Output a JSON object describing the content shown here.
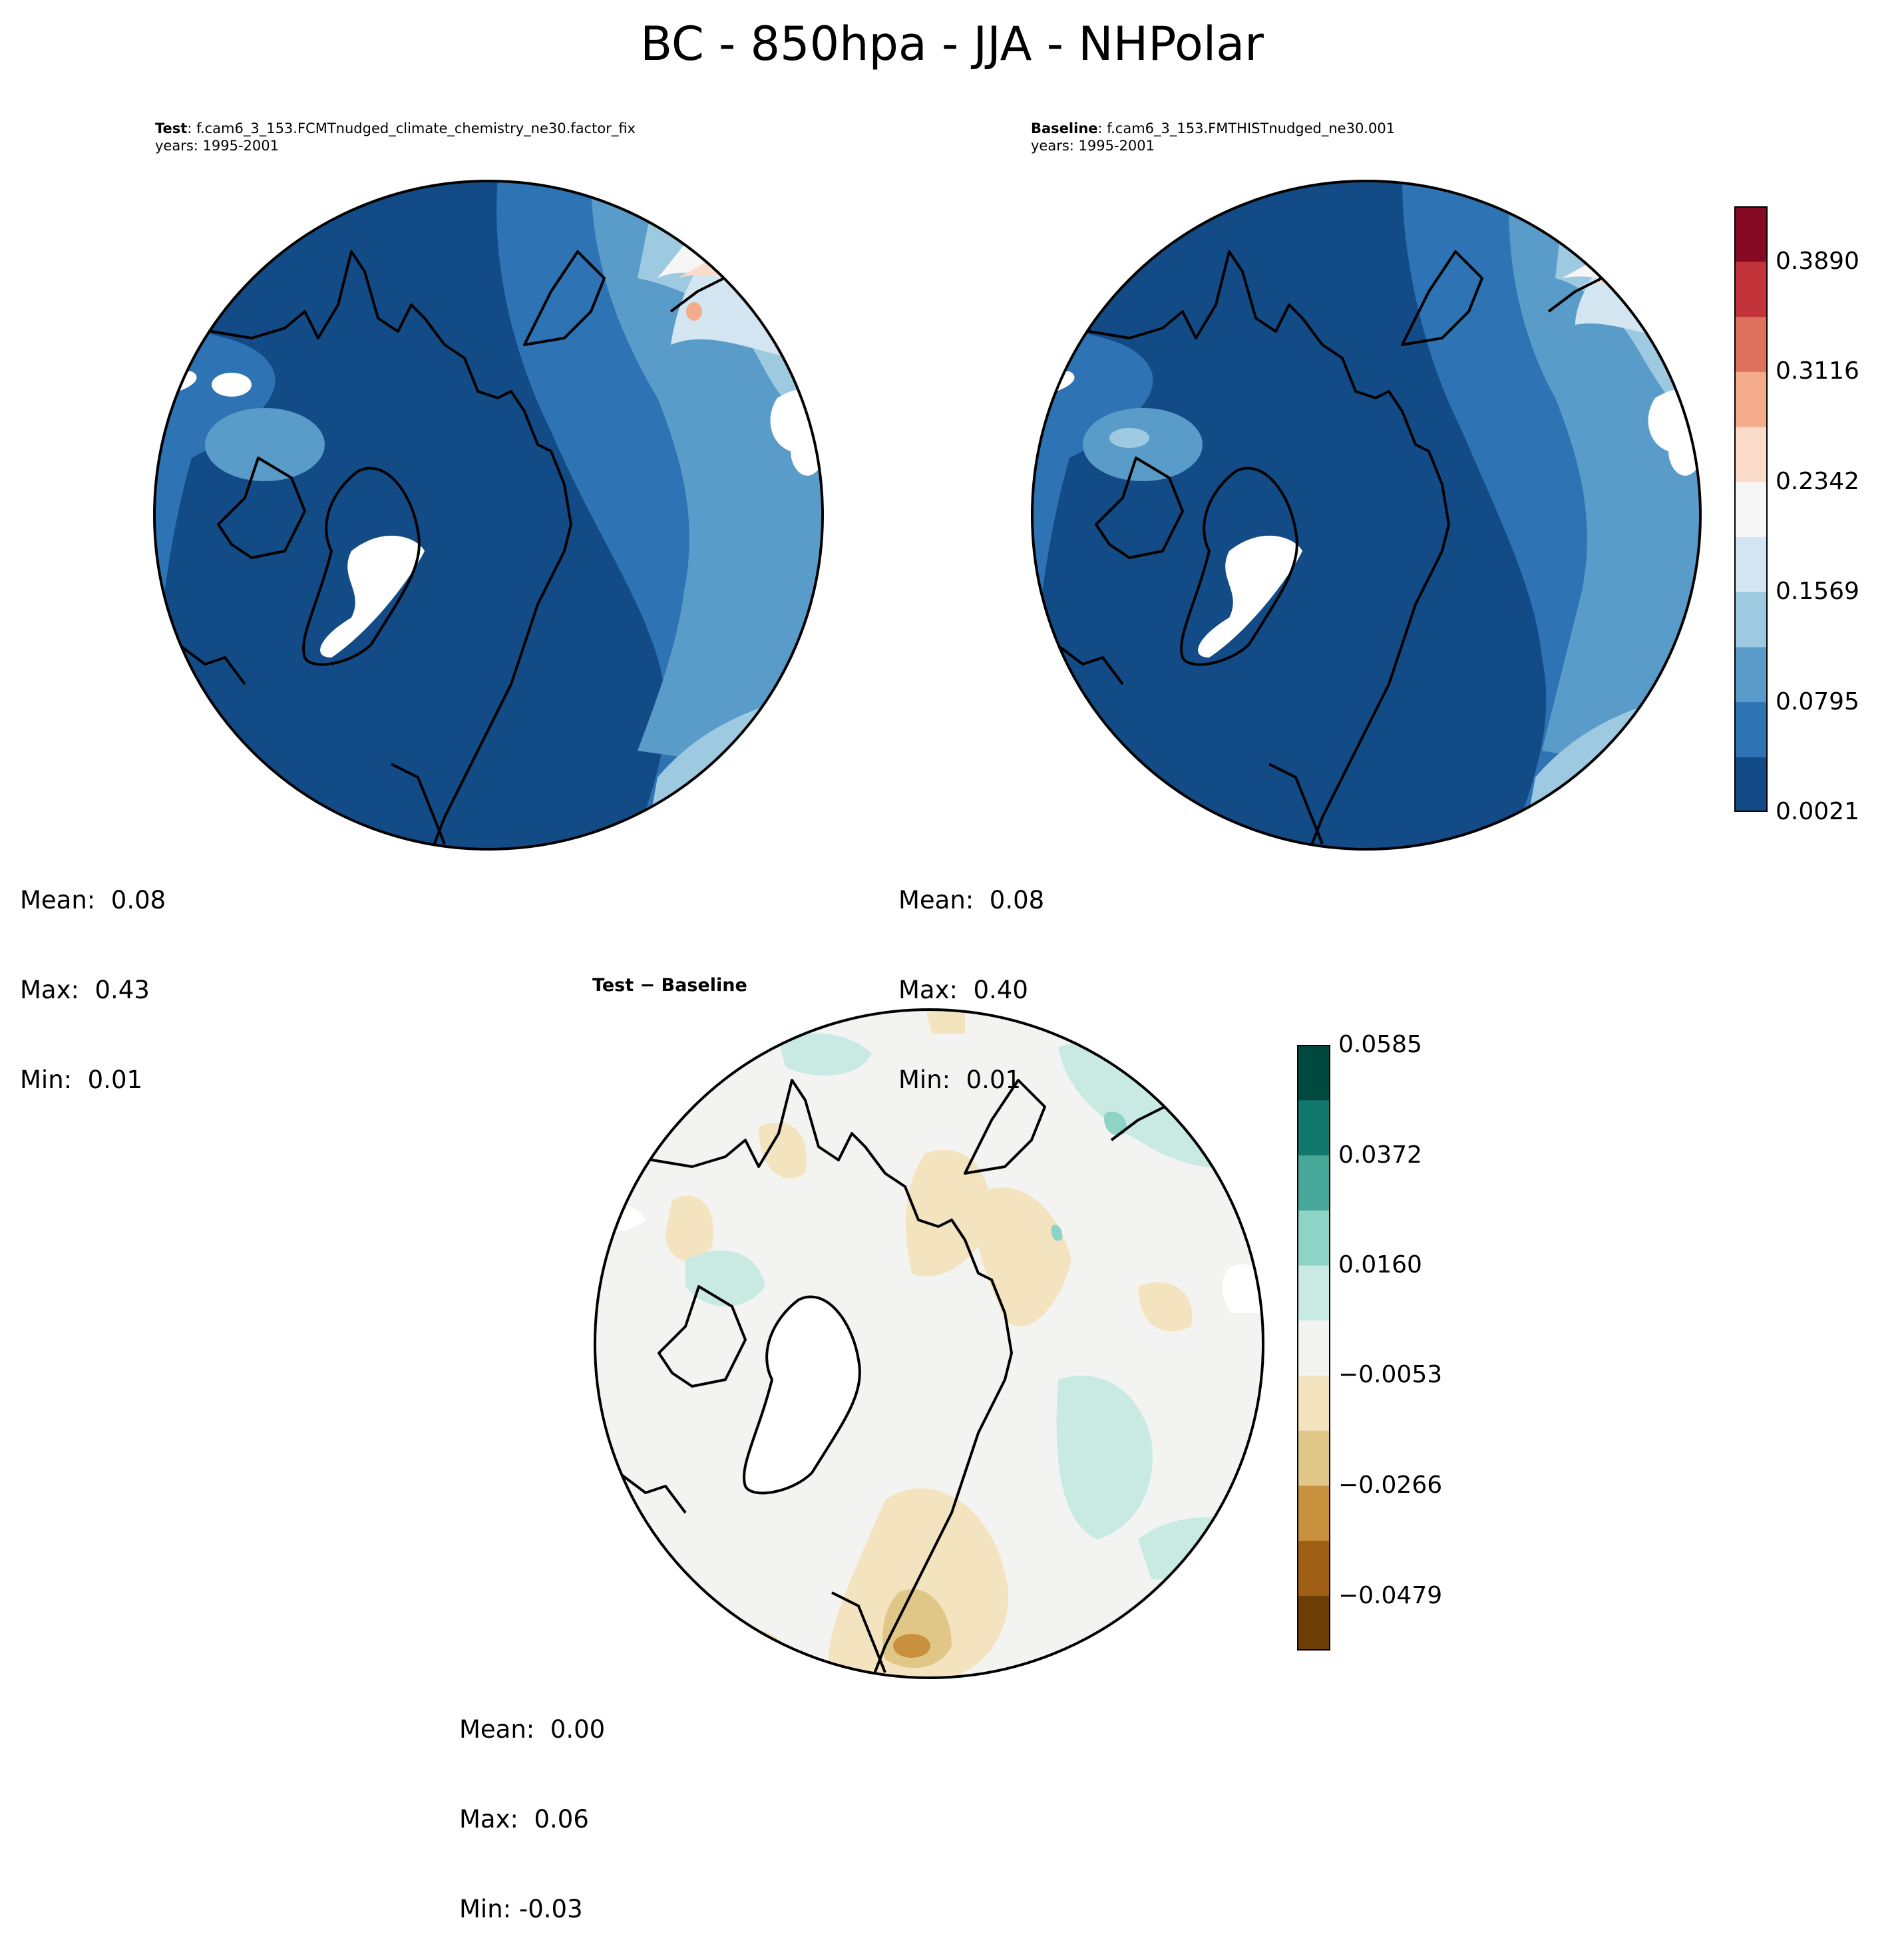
{
  "figure": {
    "title": "BC - 850hpa - JJA - NHPolar"
  },
  "panels": {
    "test": {
      "label": "Test",
      "case": ": f.cam6_3_153.FCMTnudged_climate_chemistry_ne30.factor_fix",
      "years": "years: 1995-2001",
      "stats": {
        "mean": "Mean:  0.08",
        "max": "Max:  0.43",
        "min": "Min:  0.01"
      }
    },
    "baseline": {
      "label": "Baseline",
      "case": ": f.cam6_3_153.FMTHISTnudged_ne30.001",
      "years": "years: 1995-2001",
      "stats": {
        "mean": "Mean:  0.08",
        "max": "Max:  0.40",
        "min": "Min:  0.01"
      }
    },
    "diff": {
      "label": "Test − Baseline",
      "stats": {
        "mean": "Mean:  0.00",
        "max": "Max:  0.06",
        "min": "Min: -0.03"
      }
    }
  },
  "colorbars": {
    "main": {
      "colormap": "RdBu_r",
      "ticks": [
        "0.0021",
        "0.0795",
        "0.1569",
        "0.2342",
        "0.3116",
        "0.3890"
      ],
      "range": [
        0.0021,
        0.4277
      ],
      "colors": [
        "#134b87",
        "#2e74b4",
        "#5a9cc9",
        "#9dcae1",
        "#d3e5f0",
        "#f6f6f6",
        "#fbdbc9",
        "#f4ab8c",
        "#de715e",
        "#c2343a",
        "#870a24"
      ]
    },
    "diff": {
      "colormap": "BrBG",
      "ticks": [
        "0.0585",
        "0.0372",
        "0.0160",
        "−0.0053",
        "−0.0266",
        "−0.0479"
      ],
      "range": [
        -0.0585,
        0.0585
      ],
      "colors": [
        "#6d3d06",
        "#9f6016",
        "#c9913e",
        "#e0c788",
        "#f4e3bf",
        "#f3f4f2",
        "#c9eae3",
        "#8dd3c6",
        "#47a89a",
        "#11766c",
        "#00493f"
      ]
    }
  }
}
